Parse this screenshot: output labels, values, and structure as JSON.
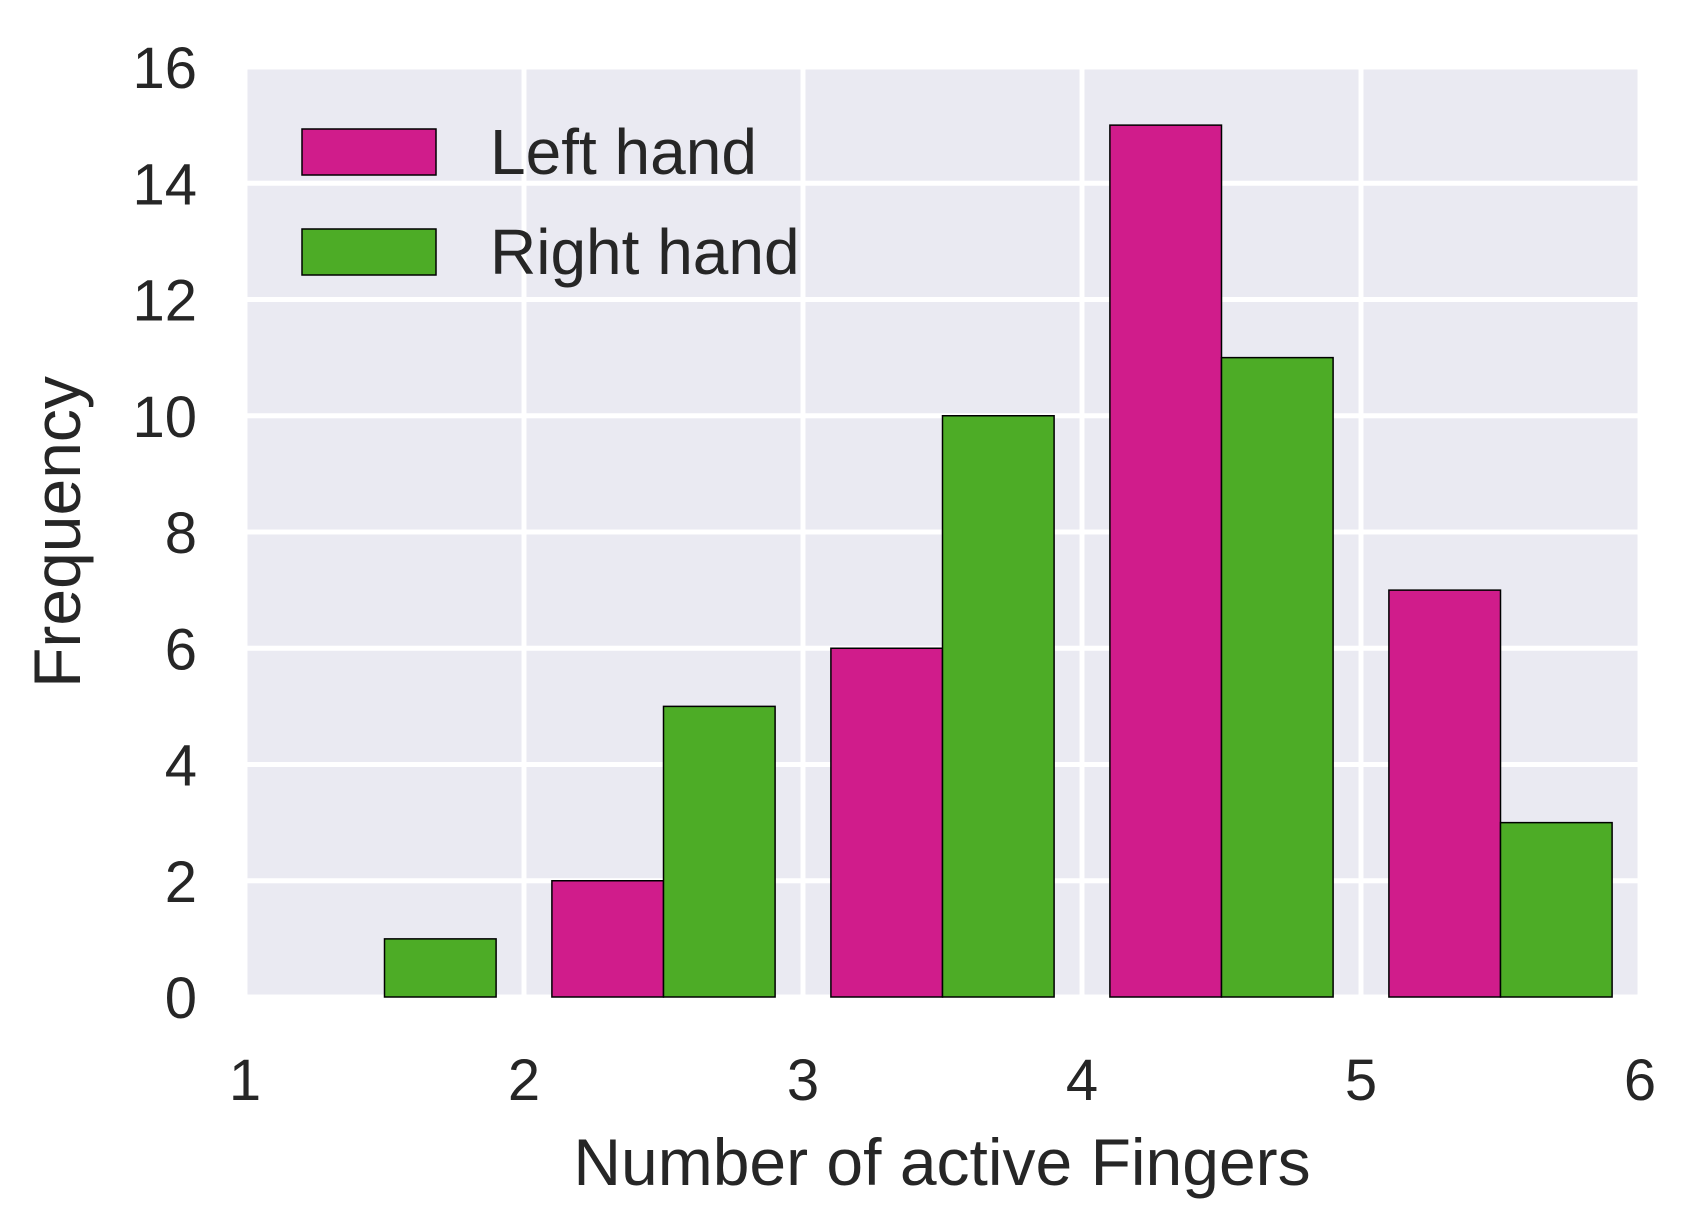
{
  "chart_data": {
    "type": "bar",
    "title": "",
    "xlabel": "Number of active Fingers",
    "ylabel": "Frequency",
    "xlim": [
      1,
      6
    ],
    "ylim": [
      0,
      16
    ],
    "xticks": [
      "1",
      "2",
      "3",
      "4",
      "5",
      "6"
    ],
    "yticks": [
      "0",
      "2",
      "4",
      "6",
      "8",
      "10",
      "12",
      "14",
      "16"
    ],
    "grid": true,
    "legend_position": "top-left",
    "bins": [
      [
        1,
        2
      ],
      [
        2,
        3
      ],
      [
        3,
        4
      ],
      [
        4,
        5
      ],
      [
        5,
        6
      ]
    ],
    "series": [
      {
        "name": "Left hand",
        "color": "#d01c8b",
        "values": [
          0,
          2,
          6,
          15,
          7
        ]
      },
      {
        "name": "Right hand",
        "color": "#4dac26",
        "values": [
          1,
          5,
          10,
          11,
          3
        ]
      }
    ]
  },
  "style": {
    "plot_background": "#eaeaf2",
    "grid_color": "#ffffff",
    "text_color": "#262626",
    "bar_edge": "#000000"
  }
}
